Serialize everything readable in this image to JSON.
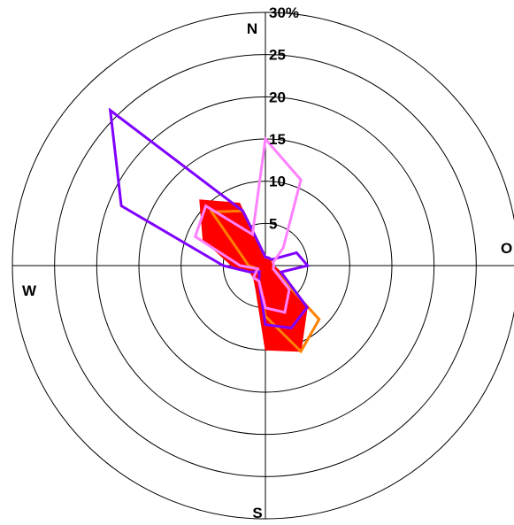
{
  "chart_data": {
    "type": "polar-line",
    "title": "",
    "r_unit": "%",
    "r_max": 30,
    "r_ticks": [
      {
        "value": 5,
        "label": "5"
      },
      {
        "value": 10,
        "label": "10"
      },
      {
        "value": 15,
        "label": "15"
      },
      {
        "value": 20,
        "label": "20"
      },
      {
        "value": 25,
        "label": "25"
      },
      {
        "value": 30,
        "label": "30%"
      }
    ],
    "direction_labels": [
      {
        "angle": 0,
        "label": "N"
      },
      {
        "angle": 90,
        "label": "O"
      },
      {
        "angle": 180,
        "label": "S"
      },
      {
        "angle": 270,
        "label": "W"
      }
    ],
    "directions_deg": [
      0,
      22.5,
      45,
      67.5,
      90,
      112.5,
      135,
      157.5,
      180,
      202.5,
      225,
      247.5,
      270,
      292.5,
      315,
      337.5
    ],
    "series": [
      {
        "color": "#ff0000",
        "style": "filled",
        "values": [
          1,
          1,
          1,
          1,
          1,
          2,
          7,
          11,
          10,
          3,
          2,
          2,
          4,
          8,
          11,
          8
        ]
      },
      {
        "color": "#ff8000",
        "style": "line",
        "values": [
          1,
          1,
          1,
          1,
          1,
          1,
          9,
          11,
          6,
          2,
          1,
          1,
          2,
          3,
          9,
          7
        ]
      },
      {
        "color": "#7f00ff",
        "style": "line",
        "values": [
          1,
          1,
          1,
          4,
          5,
          2,
          7,
          8,
          7,
          2,
          1,
          2,
          5,
          18.5,
          26,
          7
        ]
      },
      {
        "color": "#ff80ff",
        "style": "line",
        "values": [
          15,
          11,
          3,
          1,
          1,
          1,
          4,
          6,
          5,
          2,
          2,
          1,
          3,
          9,
          10,
          4
        ]
      }
    ]
  }
}
